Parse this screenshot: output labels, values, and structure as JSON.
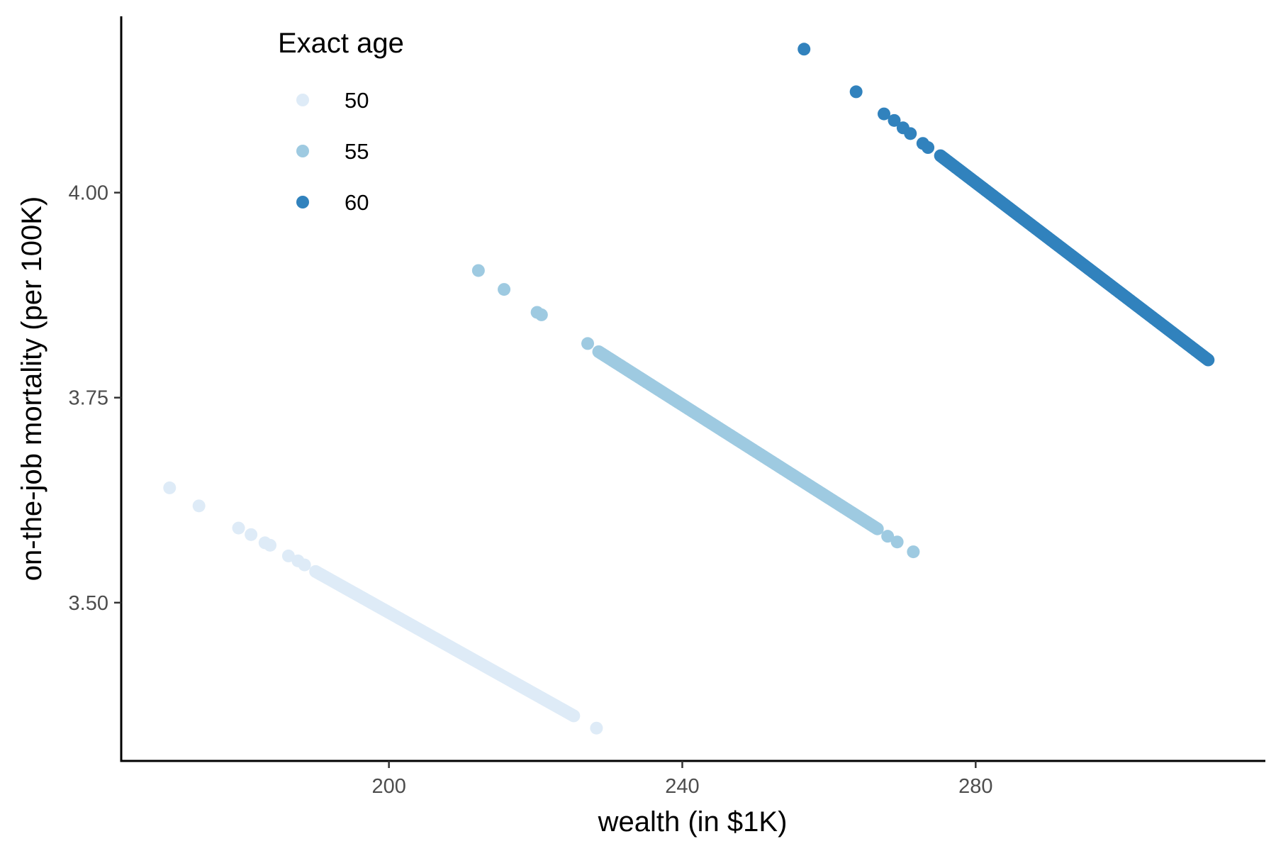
{
  "chart_data": {
    "type": "scatter",
    "title": "",
    "xlabel": "wealth (in $1K)",
    "ylabel": "on-the-job mortality (per 100K)",
    "xlim": [
      163.5,
      319.5
    ],
    "ylim": [
      3.307,
      4.215
    ],
    "x_ticks": [
      200,
      240,
      280
    ],
    "x_tick_labels": [
      "200",
      "240",
      "280"
    ],
    "y_ticks": [
      3.5,
      3.75,
      4.0
    ],
    "y_tick_labels": [
      "3.50",
      "3.75",
      "4.00"
    ],
    "grid": false,
    "legend": {
      "title": "Exact age",
      "placement": "top-left-inside",
      "entries": [
        "50",
        "55",
        "60"
      ]
    },
    "series": [
      {
        "name": "50",
        "color": "#deebf7",
        "scattered_points": [
          {
            "x": 170.1,
            "y": 3.64
          },
          {
            "x": 174.1,
            "y": 3.618
          },
          {
            "x": 179.5,
            "y": 3.591
          },
          {
            "x": 181.2,
            "y": 3.583
          },
          {
            "x": 183.1,
            "y": 3.573
          },
          {
            "x": 183.8,
            "y": 3.57
          },
          {
            "x": 186.3,
            "y": 3.557
          },
          {
            "x": 187.6,
            "y": 3.551
          },
          {
            "x": 188.5,
            "y": 3.546
          },
          {
            "x": 228.3,
            "y": 3.347
          }
        ],
        "segments": [
          {
            "x_start": 190.0,
            "y_start": 3.538,
            "x_end": 225.2,
            "y_end": 3.362,
            "n": 200
          }
        ]
      },
      {
        "name": "55",
        "color": "#9ecae1",
        "scattered_points": [
          {
            "x": 212.2,
            "y": 3.905
          },
          {
            "x": 215.7,
            "y": 3.882
          },
          {
            "x": 220.2,
            "y": 3.854
          },
          {
            "x": 220.8,
            "y": 3.851
          },
          {
            "x": 227.1,
            "y": 3.816
          },
          {
            "x": 268.0,
            "y": 3.581
          },
          {
            "x": 269.3,
            "y": 3.574
          },
          {
            "x": 271.5,
            "y": 3.562
          }
        ],
        "segments": [
          {
            "x_start": 228.6,
            "y_start": 3.806,
            "x_end": 266.6,
            "y_end": 3.59,
            "n": 260
          }
        ]
      },
      {
        "name": "60",
        "color": "#3182bd",
        "scattered_points": [
          {
            "x": 256.6,
            "y": 4.175
          },
          {
            "x": 263.7,
            "y": 4.123
          },
          {
            "x": 267.5,
            "y": 4.096
          },
          {
            "x": 268.9,
            "y": 4.088
          },
          {
            "x": 270.1,
            "y": 4.079
          },
          {
            "x": 271.1,
            "y": 4.072
          },
          {
            "x": 272.8,
            "y": 4.06
          },
          {
            "x": 273.5,
            "y": 4.055
          }
        ],
        "segments": [
          {
            "x_start": 275.2,
            "y_start": 4.045,
            "x_end": 311.7,
            "y_end": 3.796,
            "n": 320
          }
        ]
      }
    ]
  }
}
